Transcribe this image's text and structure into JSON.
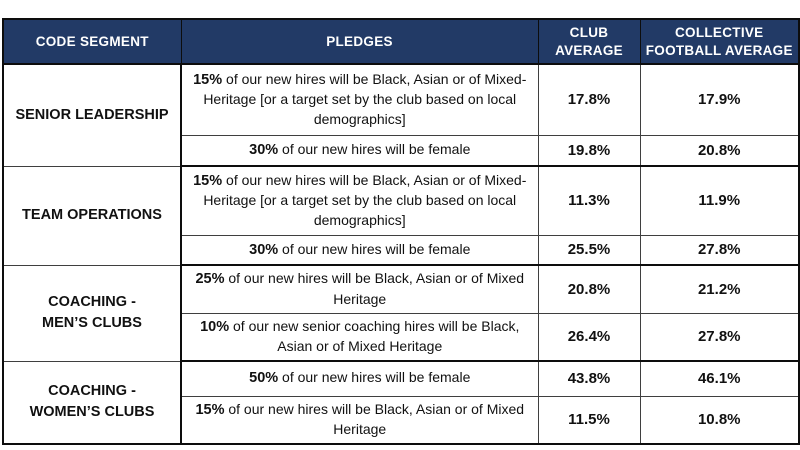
{
  "colors": {
    "header_bg": "#223a66",
    "header_text": "#ffffff",
    "body_text": "#111111",
    "thick_border": "#0d0d0d",
    "thin_border": "#3f3f3f"
  },
  "header": {
    "columns": [
      "CODE SEGMENT",
      "PLEDGES",
      "CLUB\nAVERAGE",
      "COLLECTIVE\nFOOTBALL AVERAGE"
    ]
  },
  "groups": [
    {
      "segment": "SENIOR LEADERSHIP",
      "pledges": [
        {
          "highlight": "15%",
          "rest": " of our new hires will be Black, Asian or of Mixed-Heritage [or a target set by the club based on local demographics]",
          "club_average": "17.8%",
          "collective_average": "17.9%"
        },
        {
          "highlight": "30%",
          "rest": " of our new hires will be female",
          "club_average": "19.8%",
          "collective_average": "20.8%"
        }
      ]
    },
    {
      "segment": "TEAM OPERATIONS",
      "pledges": [
        {
          "highlight": "15%",
          "rest": " of our new hires will be Black, Asian or of Mixed-Heritage [or a target set by the club based on local demographics]",
          "club_average": "11.3%",
          "collective_average": "11.9%"
        },
        {
          "highlight": "30%",
          "rest": " of our new hires will be female",
          "club_average": "25.5%",
          "collective_average": "27.8%"
        }
      ]
    },
    {
      "segment": "COACHING -\nMEN’S CLUBS",
      "pledges": [
        {
          "highlight": "25%",
          "rest": " of our new hires will be Black, Asian or of Mixed Heritage",
          "club_average": "20.8%",
          "collective_average": "21.2%"
        },
        {
          "highlight": "10%",
          "rest": " of our new senior coaching hires will be Black, Asian or of Mixed Heritage",
          "club_average": "26.4%",
          "collective_average": "27.8%"
        }
      ]
    },
    {
      "segment": "COACHING -\nWOMEN’S CLUBS",
      "pledges": [
        {
          "highlight": "50%",
          "rest": " of our new hires will be female",
          "club_average": "43.8%",
          "collective_average": "46.1%"
        },
        {
          "highlight": "15%",
          "rest": " of our new hires will be Black, Asian or of Mixed Heritage",
          "club_average": "11.5%",
          "collective_average": "10.8%"
        }
      ]
    }
  ]
}
